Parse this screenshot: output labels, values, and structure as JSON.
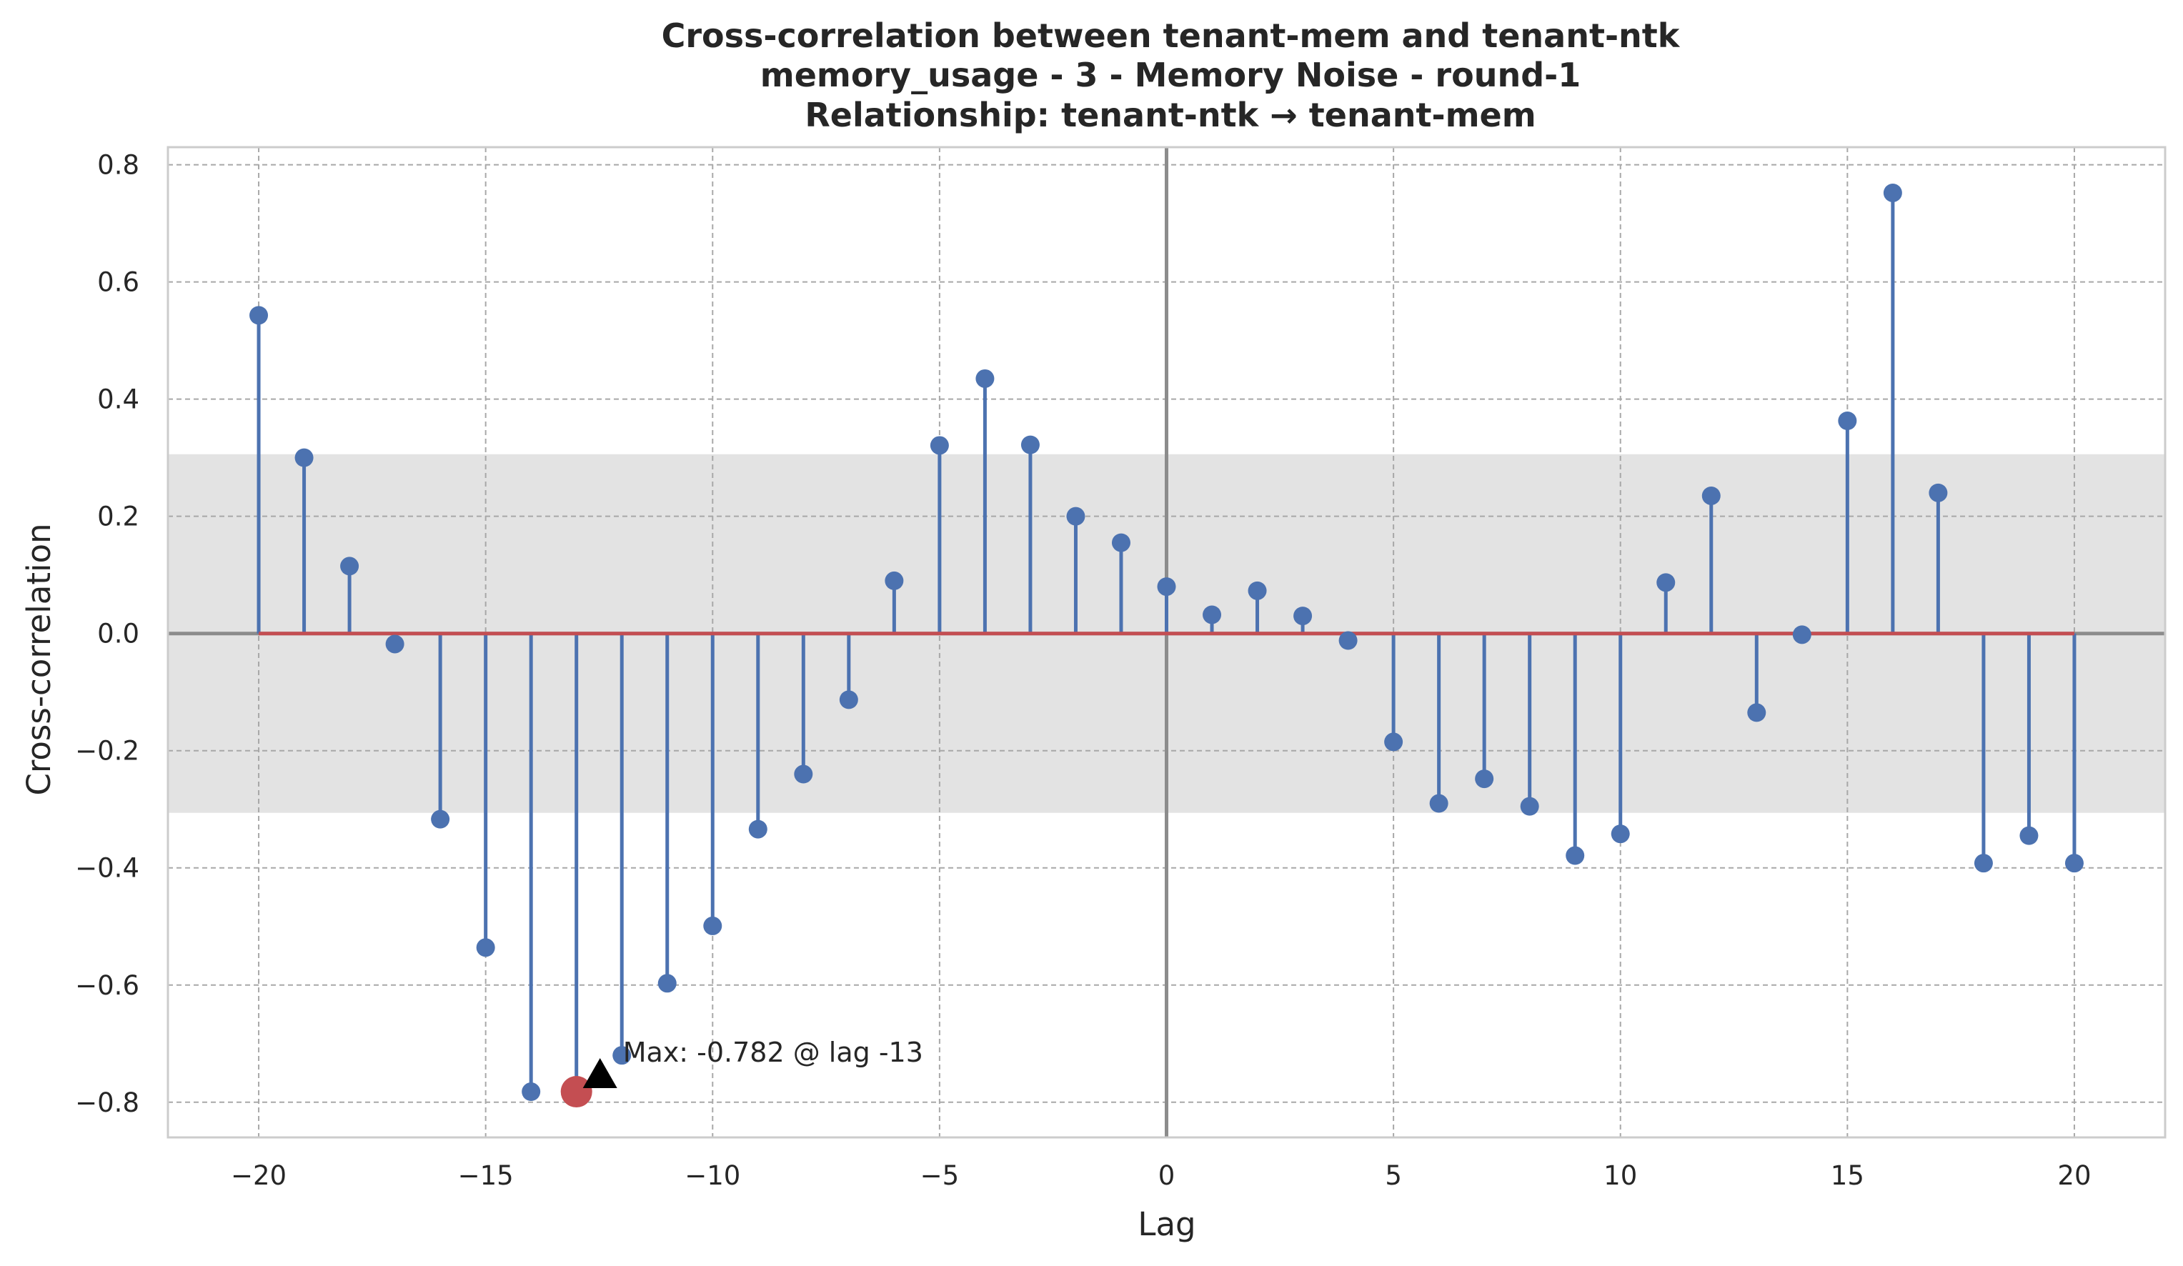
{
  "chart_data": {
    "type": "stem",
    "title_lines": [
      "Cross-correlation between tenant-mem and tenant-ntk",
      "memory_usage - 3 - Memory Noise - round-1",
      "Relationship: tenant-ntk → tenant-mem"
    ],
    "xlabel": "Lag",
    "ylabel": "Cross-correlation",
    "xlim": [
      -22,
      22
    ],
    "ylim": [
      -0.86,
      0.83
    ],
    "xticks": [
      -20,
      -15,
      -10,
      -5,
      0,
      5,
      10,
      15,
      20
    ],
    "xtick_labels": [
      "−20",
      "−15",
      "−10",
      "−5",
      "0",
      "5",
      "10",
      "15",
      "20"
    ],
    "yticks": [
      -0.8,
      -0.6,
      -0.4,
      -0.2,
      0.0,
      0.2,
      0.4,
      0.6,
      0.8
    ],
    "ytick_labels": [
      "−0.8",
      "−0.6",
      "−0.4",
      "−0.2",
      "0.0",
      "0.2",
      "0.4",
      "0.6",
      "0.8"
    ],
    "grid": true,
    "confidence_band": [
      -0.306,
      0.306
    ],
    "lags": [
      -20,
      -19,
      -18,
      -17,
      -16,
      -15,
      -14,
      -13,
      -12,
      -11,
      -10,
      -9,
      -8,
      -7,
      -6,
      -5,
      -4,
      -3,
      -2,
      -1,
      0,
      1,
      2,
      3,
      4,
      5,
      6,
      7,
      8,
      9,
      10,
      11,
      12,
      13,
      14,
      15,
      16,
      17,
      18,
      19,
      20
    ],
    "values": [
      0.543,
      0.3,
      0.115,
      -0.018,
      -0.317,
      -0.536,
      -0.782,
      -0.782,
      -0.72,
      -0.597,
      -0.499,
      -0.334,
      -0.24,
      -0.113,
      0.09,
      0.321,
      0.435,
      0.322,
      0.2,
      0.155,
      0.08,
      0.032,
      0.073,
      0.03,
      -0.012,
      -0.185,
      -0.29,
      -0.248,
      -0.295,
      -0.379,
      -0.342,
      0.087,
      0.235,
      -0.135,
      -0.002,
      0.363,
      0.752,
      0.24,
      -0.392,
      -0.345,
      -0.392
    ],
    "max_point": {
      "lag": -13,
      "value": -0.782
    },
    "annotation": "Max: -0.782 @ lag -13",
    "colors": {
      "stem": "#4c72b0",
      "marker": "#4c72b0",
      "baseline": "#c44e52",
      "max_marker": "#c44e52",
      "band": "#e3e3e3",
      "grid": "#a8a8a8",
      "zero_line": "#8c8c8c",
      "frame": "#cccccc",
      "arrow": "#000000"
    }
  }
}
